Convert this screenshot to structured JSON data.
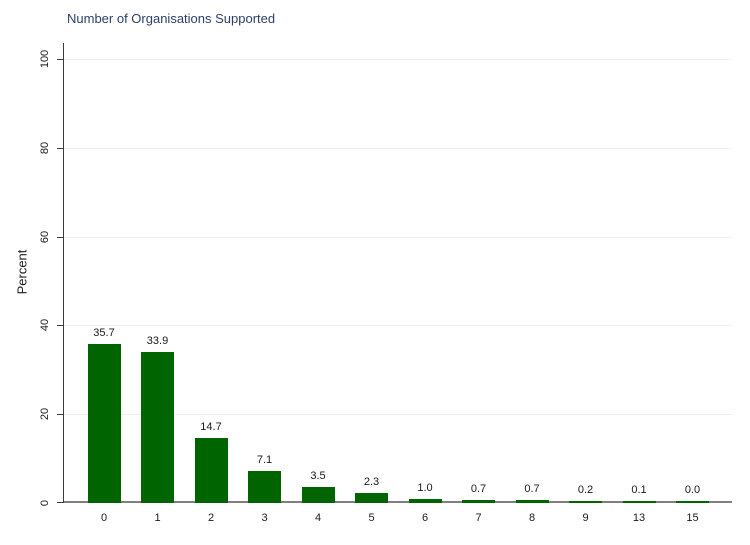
{
  "figure": {
    "background": "#ffffff",
    "title_color": "#2b3f6b",
    "grid_color": "#EAF2F3",
    "xaxis_color": "#808080",
    "yaxis_color": "#3c3c3c",
    "text_color": "#1a1a1a"
  },
  "chart_data": {
    "type": "bar",
    "title": "Number of Organisations Supported",
    "xlabel": "",
    "ylabel": "Percent",
    "categories": [
      "0",
      "1",
      "2",
      "3",
      "4",
      "5",
      "6",
      "7",
      "8",
      "9",
      "13",
      "15"
    ],
    "values": [
      35.7,
      33.9,
      14.7,
      7.1,
      3.5,
      2.3,
      1.0,
      0.7,
      0.7,
      0.2,
      0.1,
      0.0
    ],
    "value_labels": [
      "35.7",
      "33.9",
      "14.7",
      "7.1",
      "3.5",
      "2.3",
      "1.0",
      "0.7",
      "0.7",
      "0.2",
      "0.1",
      "0.0"
    ],
    "ylim": [
      0,
      100
    ],
    "yticks": [
      0,
      20,
      40,
      60,
      80,
      100
    ],
    "grid": true,
    "legend": false,
    "bar_color": "#006400"
  }
}
